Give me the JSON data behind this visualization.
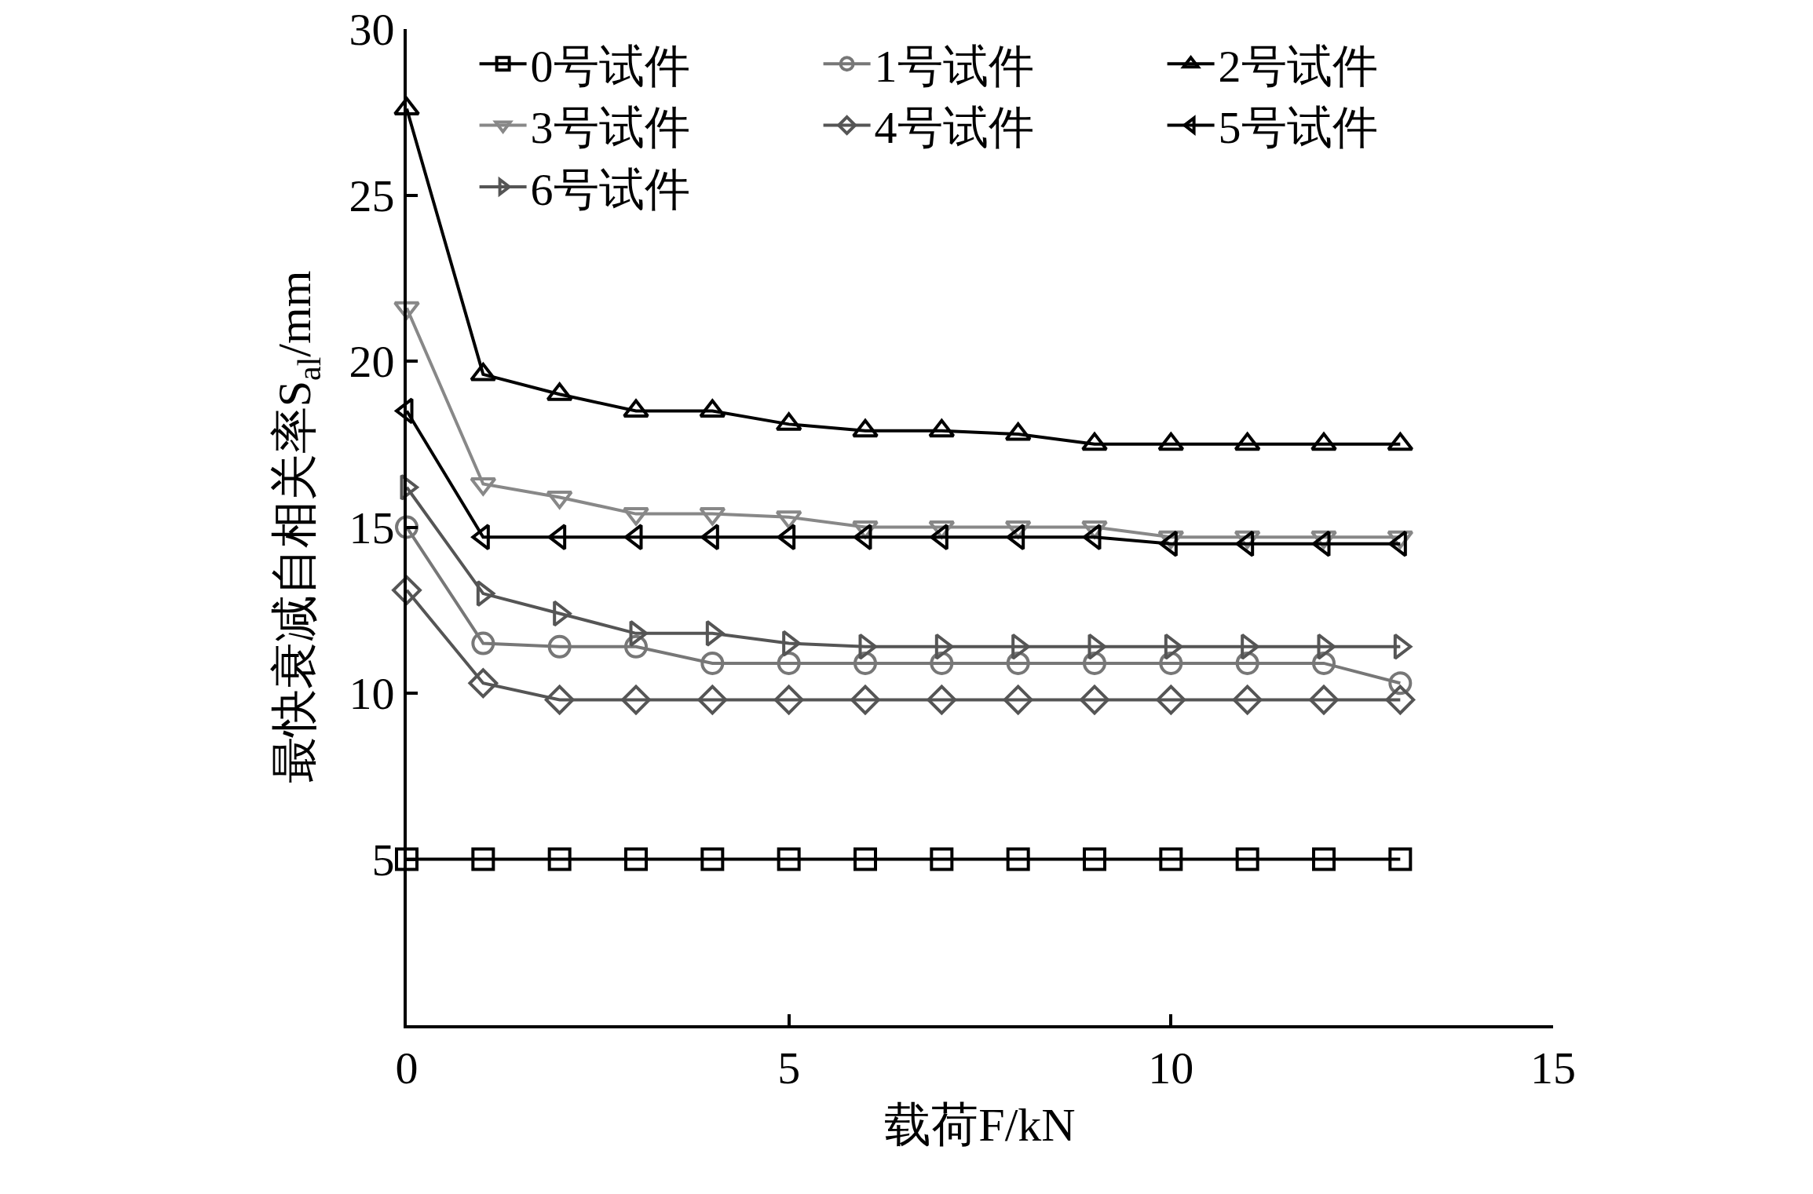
{
  "chart_data": {
    "type": "line",
    "xlabel": "载荷F/kN",
    "ylabel": "最快衰减自相关率S$_{al}$/mm",
    "x": [
      0,
      1,
      2,
      3,
      4,
      5,
      6,
      7,
      8,
      9,
      10,
      11,
      12,
      13
    ],
    "xlim": [
      0,
      15
    ],
    "xticks": [
      0,
      5,
      10,
      15
    ],
    "ylim": [
      0,
      30
    ],
    "yticks": [
      5,
      10,
      15,
      20,
      25,
      30
    ],
    "grid": false,
    "legend": "top",
    "line_style": "solid",
    "series": [
      {
        "name": "0号试件",
        "color": "#000000",
        "marker": "square",
        "values": [
          5.0,
          5.0,
          5.0,
          5.0,
          5.0,
          5.0,
          5.0,
          5.0,
          5.0,
          5.0,
          5.0,
          5.0,
          5.0,
          5.0
        ]
      },
      {
        "name": "1号试件",
        "color": "#777777",
        "marker": "circle",
        "values": [
          15.0,
          11.5,
          11.4,
          11.4,
          10.9,
          10.9,
          10.9,
          10.9,
          10.9,
          10.9,
          10.9,
          10.9,
          10.9,
          10.3
        ]
      },
      {
        "name": "2号试件",
        "color": "#000000",
        "marker": "triangle-up",
        "values": [
          27.6,
          19.6,
          19.0,
          18.5,
          18.5,
          18.1,
          17.9,
          17.9,
          17.8,
          17.5,
          17.5,
          17.5,
          17.5,
          17.5
        ]
      },
      {
        "name": "3号试件",
        "color": "#888888",
        "marker": "triangle-down",
        "values": [
          21.6,
          16.3,
          15.9,
          15.4,
          15.4,
          15.3,
          15.0,
          15.0,
          15.0,
          15.0,
          14.7,
          14.7,
          14.7,
          14.7
        ]
      },
      {
        "name": "4号试件",
        "color": "#555555",
        "marker": "diamond",
        "values": [
          13.1,
          10.3,
          9.8,
          9.8,
          9.8,
          9.8,
          9.8,
          9.8,
          9.8,
          9.8,
          9.8,
          9.8,
          9.8,
          9.8
        ]
      },
      {
        "name": "5号试件",
        "color": "#000000",
        "marker": "triangle-left",
        "values": [
          18.5,
          14.7,
          14.7,
          14.7,
          14.7,
          14.7,
          14.7,
          14.7,
          14.7,
          14.7,
          14.5,
          14.5,
          14.5,
          14.5
        ]
      },
      {
        "name": "6号试件",
        "color": "#555555",
        "marker": "triangle-right",
        "values": [
          16.2,
          13.0,
          12.4,
          11.8,
          11.8,
          11.5,
          11.4,
          11.4,
          11.4,
          11.4,
          11.4,
          11.4,
          11.4,
          11.4
        ]
      }
    ]
  }
}
